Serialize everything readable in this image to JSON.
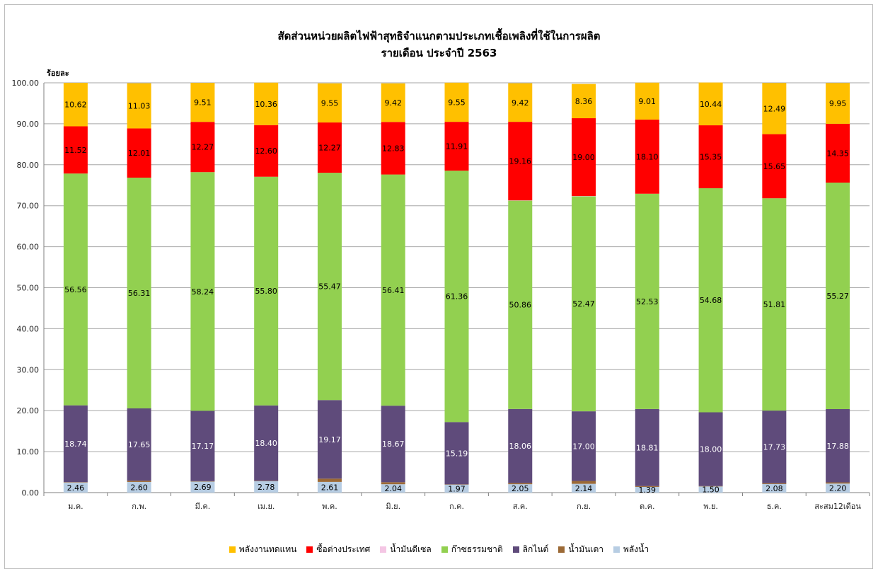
{
  "chart_data": {
    "type": "bar",
    "stacked": true,
    "title": "สัดส่วนหน่วยผลิตไฟฟ้าสุทธิจำแนกตามประเภทเชื้อเพลิงที่ใช้ในการผลิต",
    "subtitle": "รายเดือน ประจำปี 2563",
    "ylabel": "ร้อยละ",
    "xlabel": "",
    "ylim": [
      0,
      100
    ],
    "yticks": [
      "0.00",
      "10.00",
      "20.00",
      "30.00",
      "40.00",
      "50.00",
      "60.00",
      "70.00",
      "80.00",
      "90.00",
      "100.00"
    ],
    "grid": true,
    "legend_position": "bottom",
    "categories": [
      "ม.ค.",
      "ก.พ.",
      "มี.ค.",
      "เม.ย.",
      "พ.ค.",
      "มิ.ย.",
      "ก.ค.",
      "ส.ค.",
      "ก.ย.",
      "ต.ค.",
      "พ.ย.",
      "ธ.ค.",
      "สะสม12เดือน"
    ],
    "series": [
      {
        "name": "พลังน้ำ",
        "color": "#b7cde3",
        "label_color": "#000000",
        "values": [
          2.46,
          2.6,
          2.69,
          2.78,
          2.61,
          2.04,
          1.97,
          2.05,
          2.14,
          1.39,
          1.5,
          2.08,
          2.2
        ],
        "labels": [
          "2.46",
          "2.60",
          "2.69",
          "2.78",
          "2.61",
          "2.04",
          "1.97",
          "2.05",
          "2.14",
          "1.39",
          "1.50",
          "2.08",
          "2.20"
        ]
      },
      {
        "name": "น้ำมันเตา",
        "color": "#9c6a36",
        "values": [
          0.1,
          0.3,
          0.1,
          0.1,
          0.8,
          0.5,
          0.05,
          0.3,
          0.7,
          0.2,
          0.1,
          0.2,
          0.3
        ]
      },
      {
        "name": "ลิกไนต์",
        "color": "#5f4b7b",
        "label_color": "#ffffff",
        "values": [
          18.74,
          17.65,
          17.17,
          18.4,
          19.17,
          18.67,
          15.19,
          18.06,
          17.0,
          18.81,
          18.0,
          17.73,
          17.88
        ],
        "labels": [
          "18.74",
          "17.65",
          "17.17",
          "18.40",
          "19.17",
          "18.67",
          "15.19",
          "18.06",
          "17.00",
          "18.81",
          "18.00",
          "17.73",
          "17.88"
        ]
      },
      {
        "name": "ก๊าซธรรมชาติ",
        "color": "#92d050",
        "label_color": "#000000",
        "values": [
          56.56,
          56.31,
          58.24,
          55.8,
          55.47,
          56.41,
          61.36,
          50.86,
          52.47,
          52.53,
          54.68,
          51.81,
          55.27
        ],
        "labels": [
          "56.56",
          "56.31",
          "58.24",
          "55.80",
          "55.47",
          "56.41",
          "61.36",
          "50.86",
          "52.47",
          "52.53",
          "54.68",
          "51.81",
          "55.27"
        ]
      },
      {
        "name": "น้ำมันดีเซล",
        "color": "#f4c6e4",
        "values": [
          0,
          0,
          0,
          0,
          0,
          0,
          0,
          0.05,
          0.05,
          0,
          0,
          0,
          0
        ]
      },
      {
        "name": "ซื้อต่างประเทศ",
        "color": "#ff0000",
        "label_color": "#000000",
        "values": [
          11.52,
          12.01,
          12.27,
          12.6,
          12.27,
          12.83,
          11.91,
          19.16,
          19.0,
          18.1,
          15.35,
          15.65,
          14.35
        ],
        "labels": [
          "11.52",
          "12.01",
          "12.27",
          "12.60",
          "12.27",
          "12.83",
          "11.91",
          "19.16",
          "19.00",
          "18.10",
          "15.35",
          "15.65",
          "14.35"
        ]
      },
      {
        "name": "พลังงานทดแทน",
        "color": "#ffc000",
        "label_color": "#000000",
        "values": [
          10.62,
          11.03,
          9.51,
          10.36,
          9.55,
          9.42,
          9.55,
          9.42,
          8.36,
          9.01,
          10.44,
          12.49,
          9.95
        ],
        "labels": [
          "10.62",
          "11.03",
          "9.51",
          "10.36",
          "9.55",
          "9.42",
          "9.55",
          "9.42",
          "8.36",
          "9.01",
          "10.44",
          "12.49",
          "9.95"
        ]
      }
    ],
    "legend_order": [
      "พลังงานทดแทน",
      "ซื้อต่างประเทศ",
      "น้ำมันดีเซล",
      "ก๊าซธรรมชาติ",
      "ลิกไนต์",
      "น้ำมันเตา",
      "พลังน้ำ"
    ]
  }
}
